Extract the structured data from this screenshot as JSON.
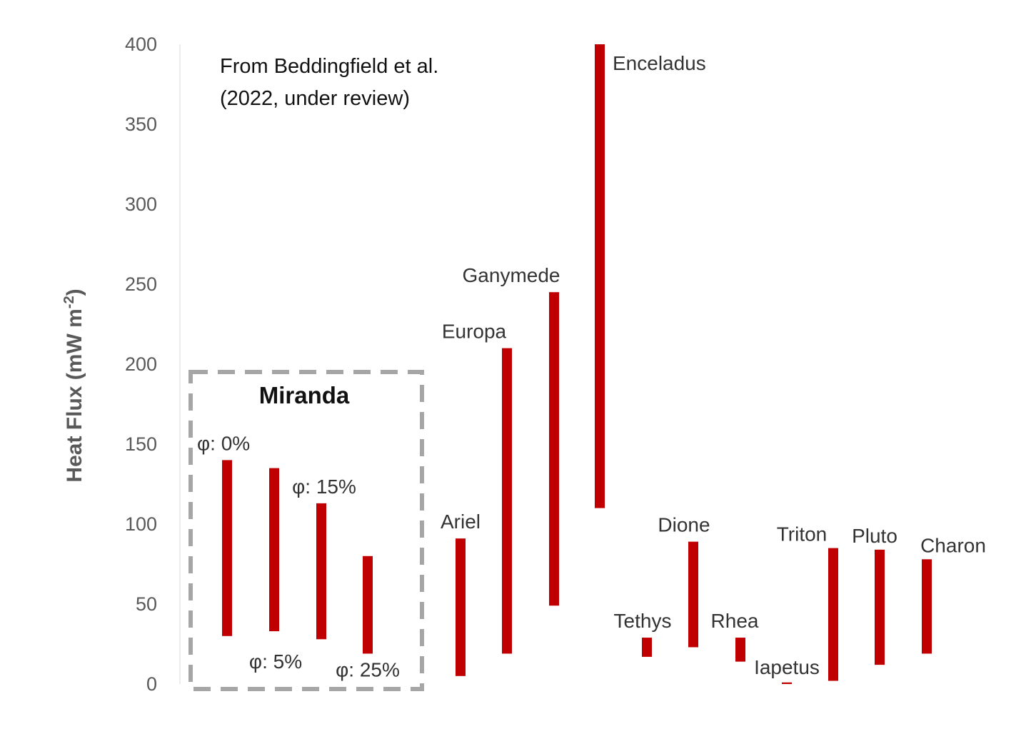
{
  "chart_data": {
    "type": "bar",
    "subtype": "floating-range",
    "ylabel": "Heat Flux (mW m",
    "ylabel_sup": "-2",
    "ylabel_close": ")",
    "ylim": [
      0,
      400
    ],
    "yticks": [
      "0",
      "50",
      "100",
      "150",
      "200",
      "250",
      "300",
      "350",
      "400"
    ],
    "grid": false,
    "bar_color": "#c00000",
    "annotation": [
      "From Beddingfield et al.",
      "(2022, under review)"
    ],
    "group_box": {
      "title": "Miranda",
      "border_color": "#a6a6a6"
    },
    "series": [
      {
        "label": "φ: 0%",
        "low": 30,
        "high": 140,
        "label_pos": "top-left"
      },
      {
        "label": "φ: 5%",
        "low": 33,
        "high": 135,
        "label_pos": "bottom"
      },
      {
        "label": "φ: 15%",
        "low": 28,
        "high": 113,
        "label_pos": "top"
      },
      {
        "label": "φ: 25%",
        "low": 19,
        "high": 80,
        "label_pos": "bottom"
      },
      {
        "label": "Ariel",
        "low": 5,
        "high": 91,
        "label_pos": "top"
      },
      {
        "label": "Europa",
        "low": 19,
        "high": 210,
        "label_pos": "top"
      },
      {
        "label": "Ganymede",
        "low": 49,
        "high": 245,
        "label_pos": "top"
      },
      {
        "label": "Enceladus",
        "low": 110,
        "high": 400,
        "label_pos": "right"
      },
      {
        "label": "Tethys",
        "low": 17,
        "high": 29,
        "label_pos": "top"
      },
      {
        "label": "Dione",
        "low": 23,
        "high": 89,
        "label_pos": "top"
      },
      {
        "label": "Rhea",
        "low": 14,
        "high": 29,
        "label_pos": "top"
      },
      {
        "label": "Iapetus",
        "low": 0,
        "high": 1,
        "label_pos": "top"
      },
      {
        "label": "Triton",
        "low": 2,
        "high": 85,
        "label_pos": "top"
      },
      {
        "label": "Pluto",
        "low": 12,
        "high": 84,
        "label_pos": "top"
      },
      {
        "label": "Charon",
        "low": 19,
        "high": 78,
        "label_pos": "top"
      }
    ]
  }
}
